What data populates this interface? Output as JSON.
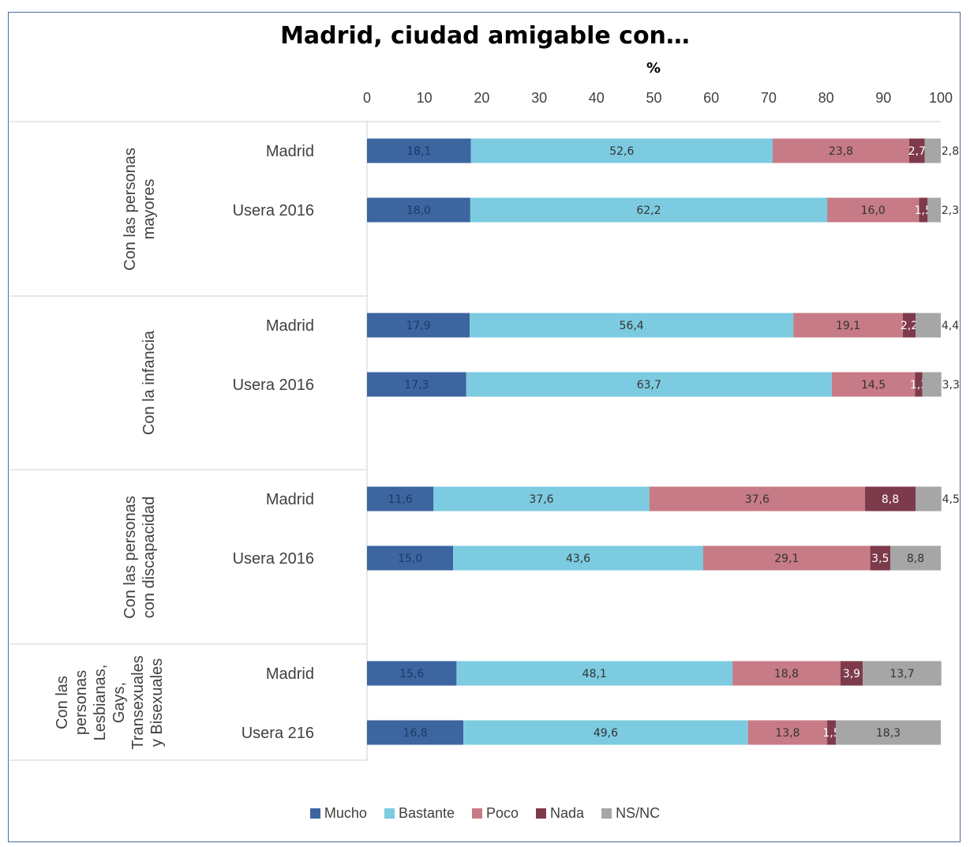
{
  "chart_data": {
    "type": "bar",
    "orientation": "horizontal",
    "stacked": true,
    "title": "Madrid, ciudad amigable con…",
    "xlabel": "%",
    "xlim": [
      0,
      100
    ],
    "xticks": [
      "0",
      "10",
      "20",
      "30",
      "40",
      "50",
      "60",
      "70",
      "80",
      "90",
      "100"
    ],
    "legend_position": "bottom",
    "groups": [
      {
        "label": "Con las personas mayores",
        "label_lines": [
          "Con las personas",
          "mayores"
        ],
        "categories": [
          "Madrid",
          "Usera 2016"
        ]
      },
      {
        "label": "Con la infancia",
        "label_lines": [
          "Con la infancia"
        ],
        "categories": [
          "Madrid",
          "Usera 2016"
        ]
      },
      {
        "label": "Con las personas con discapacidad",
        "label_lines": [
          "Con las personas",
          "con discapacidad"
        ],
        "categories": [
          "Madrid",
          "Usera 2016"
        ]
      },
      {
        "label": "Con las personas Lesbianas, Gays, Transexuales y Bisexuales",
        "label_lines": [
          "Con las",
          "personas",
          "Lesbianas,",
          "Gays,",
          "Transexuales",
          "y Bisexuales"
        ],
        "categories": [
          "Madrid",
          "Usera 216"
        ]
      }
    ],
    "series": [
      {
        "name": "Mucho",
        "color": "#3d65a0",
        "values": [
          18.1,
          18.0,
          17.9,
          17.3,
          11.6,
          15.0,
          15.6,
          16.8
        ],
        "labels": [
          "18,1",
          "18,0",
          "17,9",
          "17,3",
          "11,6",
          "15,0",
          "15,6",
          "16,8"
        ]
      },
      {
        "name": "Bastante",
        "color": "#7ccbe0",
        "values": [
          52.6,
          62.2,
          56.4,
          63.7,
          37.6,
          43.6,
          48.1,
          49.6
        ],
        "labels": [
          "52,6",
          "62,2",
          "56,4",
          "63,7",
          "37,6",
          "43,6",
          "48,1",
          "49,6"
        ]
      },
      {
        "name": "Poco",
        "color": "#c77b86",
        "values": [
          23.8,
          16.0,
          19.1,
          14.5,
          37.6,
          29.1,
          18.8,
          13.8
        ],
        "labels": [
          "23,8",
          "16,0",
          "19,1",
          "14,5",
          "37,6",
          "29,1",
          "18,8",
          "13,8"
        ]
      },
      {
        "name": "Nada",
        "color": "#7d3a4a",
        "values": [
          2.7,
          1.5,
          2.2,
          1.3,
          8.8,
          3.5,
          3.9,
          1.5
        ],
        "labels": [
          "2,7",
          "1,5",
          "2,2",
          "1,3",
          "8,8",
          "3,5",
          "3,9",
          "1,5"
        ]
      },
      {
        "name": "NS/NC",
        "color": "#a6a6a6",
        "values": [
          2.8,
          2.3,
          4.4,
          3.3,
          4.5,
          8.8,
          13.7,
          18.3
        ],
        "labels": [
          "2,8",
          "2,3",
          "4,4",
          "3,3",
          "4,5",
          "8,8",
          "13,7",
          "18,3"
        ]
      }
    ]
  }
}
